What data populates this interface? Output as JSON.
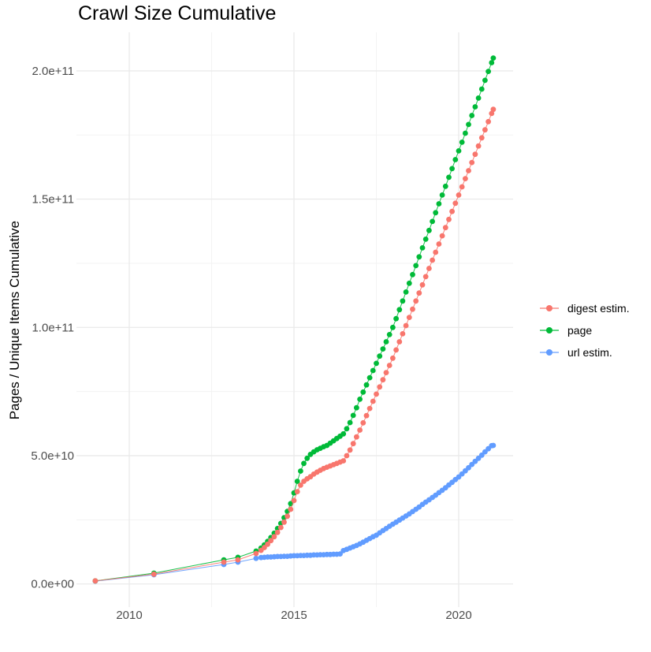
{
  "chart_data": {
    "type": "scatter",
    "title": "Crawl Size Cumulative",
    "xlabel": "",
    "ylabel": "Pages / Unique Items Cumulative",
    "background_color": "#FFFFFF",
    "grid": true,
    "grid_major_color": "#EBEBEB",
    "grid_minor_color": "#F3F3F3",
    "tick_label_color": "#4D4D4D",
    "legend_position": "right",
    "xlim_years": [
      2008.35,
      2021.65
    ],
    "ylim": [
      0,
      215000000000.0
    ],
    "value_unit": "billions (1e9)",
    "x_ticks": [
      {
        "value": 2010,
        "label": "2010"
      },
      {
        "value": 2015,
        "label": "2015"
      },
      {
        "value": 2020,
        "label": "2020"
      }
    ],
    "x_minor_years": [
      2012.5,
      2017.5
    ],
    "y_ticks": [
      {
        "value_billions": 0,
        "label": "0.0e+00"
      },
      {
        "value_billions": 50,
        "label": "5.0e+10"
      },
      {
        "value_billions": 100,
        "label": "1.0e+11"
      },
      {
        "value_billions": 150,
        "label": "1.5e+11"
      },
      {
        "value_billions": 200,
        "label": "2.0e+11"
      }
    ],
    "y_minor_billions": [
      25,
      75,
      125,
      175
    ],
    "series": [
      {
        "name": "digest estim.",
        "color": "#F8766D",
        "points_year_billions": [
          [
            2008.97,
            1.2
          ],
          [
            2010.75,
            3.8
          ],
          [
            2012.87,
            8.5
          ],
          [
            2013.3,
            9.4
          ],
          [
            2013.85,
            11.9
          ],
          [
            2014,
            13.1
          ],
          [
            2014.1,
            14.2
          ],
          [
            2014.2,
            15.5
          ],
          [
            2014.3,
            16.9
          ],
          [
            2014.4,
            18.4
          ],
          [
            2014.5,
            20.1
          ],
          [
            2014.6,
            22
          ],
          [
            2014.7,
            24.1
          ],
          [
            2014.8,
            26.4
          ],
          [
            2014.9,
            29.1
          ],
          [
            2015,
            32.5
          ],
          [
            2015.1,
            36
          ],
          [
            2015.2,
            38.5
          ],
          [
            2015.3,
            40
          ],
          [
            2015.4,
            41
          ],
          [
            2015.5,
            41.8
          ],
          [
            2015.6,
            42.8
          ],
          [
            2015.7,
            43.6
          ],
          [
            2015.8,
            44.3
          ],
          [
            2015.9,
            45
          ],
          [
            2016,
            45.5
          ],
          [
            2016.1,
            46
          ],
          [
            2016.2,
            46.5
          ],
          [
            2016.3,
            47
          ],
          [
            2016.4,
            47.5
          ],
          [
            2016.5,
            48
          ],
          [
            2016.6,
            50
          ],
          [
            2016.7,
            52.2
          ],
          [
            2016.8,
            54.7
          ],
          [
            2016.9,
            57.3
          ],
          [
            2017,
            60
          ],
          [
            2017.1,
            62.8
          ],
          [
            2017.2,
            65.6
          ],
          [
            2017.3,
            68.4
          ],
          [
            2017.4,
            71.2
          ],
          [
            2017.5,
            74
          ],
          [
            2017.6,
            76.8
          ],
          [
            2017.7,
            79.6
          ],
          [
            2017.8,
            82.4
          ],
          [
            2017.9,
            85.2
          ],
          [
            2018,
            88
          ],
          [
            2018.1,
            91.2
          ],
          [
            2018.2,
            94.4
          ],
          [
            2018.3,
            97.5
          ],
          [
            2018.4,
            100.7
          ],
          [
            2018.5,
            103.9
          ],
          [
            2018.6,
            107.1
          ],
          [
            2018.7,
            110.3
          ],
          [
            2018.8,
            113.4
          ],
          [
            2018.9,
            116.6
          ],
          [
            2019,
            119.8
          ],
          [
            2019.1,
            123
          ],
          [
            2019.2,
            126.2
          ],
          [
            2019.3,
            129.3
          ],
          [
            2019.4,
            132.5
          ],
          [
            2019.5,
            135.7
          ],
          [
            2019.6,
            138.9
          ],
          [
            2019.7,
            142.1
          ],
          [
            2019.8,
            145.2
          ],
          [
            2019.9,
            148.4
          ],
          [
            2020,
            151.6
          ],
          [
            2020.1,
            154.8
          ],
          [
            2020.2,
            158
          ],
          [
            2020.3,
            161.1
          ],
          [
            2020.4,
            164.3
          ],
          [
            2020.5,
            167.5
          ],
          [
            2020.6,
            170.7
          ],
          [
            2020.7,
            173.9
          ],
          [
            2020.8,
            177
          ],
          [
            2020.9,
            180.2
          ],
          [
            2021,
            183.4
          ],
          [
            2021.05,
            185
          ]
        ]
      },
      {
        "name": "page",
        "color": "#00BA38",
        "points_year_billions": [
          [
            2008.97,
            1.2
          ],
          [
            2010.75,
            4.2
          ],
          [
            2012.87,
            9.4
          ],
          [
            2013.3,
            10.4
          ],
          [
            2013.85,
            12.8
          ],
          [
            2014,
            14
          ],
          [
            2014.1,
            15.2
          ],
          [
            2014.2,
            16.6
          ],
          [
            2014.3,
            18.1
          ],
          [
            2014.4,
            19.8
          ],
          [
            2014.5,
            21.6
          ],
          [
            2014.6,
            23.6
          ],
          [
            2014.7,
            25.8
          ],
          [
            2014.8,
            28.3
          ],
          [
            2014.9,
            31.3
          ],
          [
            2015,
            35.5
          ],
          [
            2015.1,
            40
          ],
          [
            2015.2,
            44
          ],
          [
            2015.3,
            47
          ],
          [
            2015.4,
            49
          ],
          [
            2015.5,
            50.5
          ],
          [
            2015.6,
            51.5
          ],
          [
            2015.7,
            52.3
          ],
          [
            2015.8,
            52.9
          ],
          [
            2015.9,
            53.5
          ],
          [
            2016,
            54
          ],
          [
            2016.1,
            54.9
          ],
          [
            2016.2,
            55.8
          ],
          [
            2016.3,
            56.7
          ],
          [
            2016.4,
            57.6
          ],
          [
            2016.5,
            58.5
          ],
          [
            2016.6,
            60.5
          ],
          [
            2016.7,
            62.9
          ],
          [
            2016.8,
            65.7
          ],
          [
            2016.9,
            68.7
          ],
          [
            2017,
            72
          ],
          [
            2017.1,
            74.8
          ],
          [
            2017.2,
            77.6
          ],
          [
            2017.3,
            80.4
          ],
          [
            2017.4,
            83.2
          ],
          [
            2017.5,
            86
          ],
          [
            2017.6,
            88.8
          ],
          [
            2017.7,
            91.6
          ],
          [
            2017.8,
            94.4
          ],
          [
            2017.9,
            97.2
          ],
          [
            2018,
            100
          ],
          [
            2018.1,
            103.4
          ],
          [
            2018.2,
            106.9
          ],
          [
            2018.3,
            110.3
          ],
          [
            2018.4,
            113.8
          ],
          [
            2018.5,
            117.2
          ],
          [
            2018.6,
            120.6
          ],
          [
            2018.7,
            124.1
          ],
          [
            2018.8,
            127.5
          ],
          [
            2018.9,
            131
          ],
          [
            2019,
            134.4
          ],
          [
            2019.1,
            137.8
          ],
          [
            2019.2,
            141.3
          ],
          [
            2019.3,
            144.7
          ],
          [
            2019.4,
            148.2
          ],
          [
            2019.5,
            151.6
          ],
          [
            2019.6,
            155
          ],
          [
            2019.7,
            158.5
          ],
          [
            2019.8,
            161.9
          ],
          [
            2019.9,
            165.4
          ],
          [
            2020,
            168.8
          ],
          [
            2020.1,
            172.2
          ],
          [
            2020.2,
            175.7
          ],
          [
            2020.3,
            179.1
          ],
          [
            2020.4,
            182.6
          ],
          [
            2020.5,
            186
          ],
          [
            2020.6,
            189.4
          ],
          [
            2020.7,
            192.9
          ],
          [
            2020.8,
            196.3
          ],
          [
            2020.9,
            199.8
          ],
          [
            2021,
            203.2
          ],
          [
            2021.05,
            205
          ]
        ]
      },
      {
        "name": "url estim.",
        "color": "#619CFF",
        "points_year_billions": [
          [
            2008.97,
            1.1
          ],
          [
            2010.75,
            3.6
          ],
          [
            2012.87,
            7.6
          ],
          [
            2013.3,
            8.5
          ],
          [
            2013.85,
            10
          ],
          [
            2014,
            10.3
          ],
          [
            2014.1,
            10.4
          ],
          [
            2014.2,
            10.5
          ],
          [
            2014.3,
            10.5
          ],
          [
            2014.4,
            10.6
          ],
          [
            2014.5,
            10.7
          ],
          [
            2014.6,
            10.7
          ],
          [
            2014.7,
            10.8
          ],
          [
            2014.8,
            10.8
          ],
          [
            2014.9,
            10.9
          ],
          [
            2015,
            11
          ],
          [
            2015.1,
            11
          ],
          [
            2015.2,
            11.1
          ],
          [
            2015.3,
            11.1
          ],
          [
            2015.4,
            11.2
          ],
          [
            2015.5,
            11.2
          ],
          [
            2015.6,
            11.3
          ],
          [
            2015.7,
            11.3
          ],
          [
            2015.8,
            11.4
          ],
          [
            2015.9,
            11.4
          ],
          [
            2016,
            11.5
          ],
          [
            2016.1,
            11.5
          ],
          [
            2016.2,
            11.6
          ],
          [
            2016.3,
            11.6
          ],
          [
            2016.4,
            11.7
          ],
          [
            2016.5,
            13
          ],
          [
            2016.6,
            13.5
          ],
          [
            2016.7,
            14
          ],
          [
            2016.8,
            14.5
          ],
          [
            2016.9,
            15
          ],
          [
            2017,
            15.6
          ],
          [
            2017.1,
            16.3
          ],
          [
            2017.2,
            17
          ],
          [
            2017.3,
            17.7
          ],
          [
            2017.4,
            18.4
          ],
          [
            2017.5,
            19
          ],
          [
            2017.6,
            19.9
          ],
          [
            2017.7,
            20.8
          ],
          [
            2017.8,
            21.6
          ],
          [
            2017.9,
            22.5
          ],
          [
            2018,
            23.3
          ],
          [
            2018.1,
            24.1
          ],
          [
            2018.2,
            24.9
          ],
          [
            2018.3,
            25.7
          ],
          [
            2018.4,
            26.5
          ],
          [
            2018.5,
            27.3
          ],
          [
            2018.6,
            28.2
          ],
          [
            2018.7,
            29.1
          ],
          [
            2018.8,
            30
          ],
          [
            2018.9,
            31
          ],
          [
            2019,
            31.9
          ],
          [
            2019.1,
            32.8
          ],
          [
            2019.2,
            33.7
          ],
          [
            2019.3,
            34.6
          ],
          [
            2019.4,
            35.6
          ],
          [
            2019.5,
            36.5
          ],
          [
            2019.6,
            37.5
          ],
          [
            2019.7,
            38.6
          ],
          [
            2019.8,
            39.6
          ],
          [
            2019.9,
            40.7
          ],
          [
            2020,
            41.7
          ],
          [
            2020.1,
            42.9
          ],
          [
            2020.2,
            44.1
          ],
          [
            2020.3,
            45.3
          ],
          [
            2020.4,
            46.6
          ],
          [
            2020.5,
            47.8
          ],
          [
            2020.6,
            49
          ],
          [
            2020.7,
            50.2
          ],
          [
            2020.8,
            51.5
          ],
          [
            2020.9,
            52.7
          ],
          [
            2021,
            53.9
          ],
          [
            2021.05,
            54
          ]
        ]
      }
    ]
  }
}
